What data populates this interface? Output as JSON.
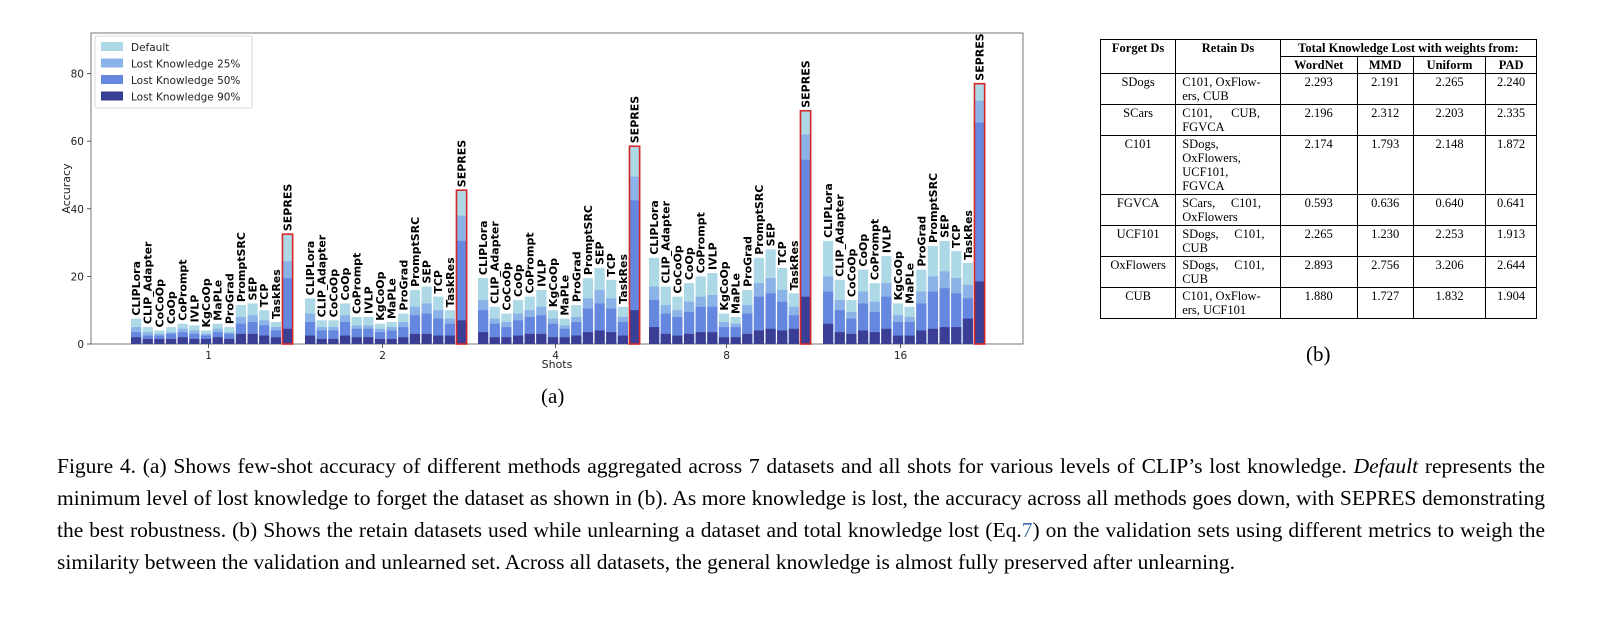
{
  "figure_a": {
    "sub_label": "(a)",
    "chart_data": {
      "type": "bar",
      "stacked_overlay": true,
      "xlabel": "Shots",
      "ylabel": "Accuracy",
      "ylim": [
        0,
        92
      ],
      "yticks": [
        0,
        20,
        40,
        60,
        80
      ],
      "legend_position": "top-left",
      "groups": [
        "1",
        "2",
        "4",
        "8",
        "16"
      ],
      "methods": [
        "CLIPLora",
        "CLIP_Adapter",
        "CoCoOp",
        "CoOp",
        "CoPrompt",
        "IVLP",
        "KgCoOp",
        "MaPLe",
        "ProGrad",
        "PromptSRC",
        "SEP",
        "TCP",
        "TaskRes",
        "SEPRES"
      ],
      "highlight_method": "SEPRES",
      "highlight_color": "#d62728",
      "series": [
        {
          "name": "Default",
          "color": "#add8e6",
          "values": [
            [
              7.5,
              5.0,
              4.0,
              5.0,
              6.0,
              5.5,
              4.0,
              6.0,
              5.0,
              11.5,
              12.0,
              10.0,
              6.5,
              32.5
            ],
            [
              13.5,
              7.0,
              7.0,
              12.0,
              8.0,
              8.0,
              6.0,
              6.5,
              9.0,
              16.0,
              17.0,
              14.0,
              10.0,
              45.5
            ],
            [
              19.5,
              11.0,
              9.0,
              13.0,
              14.0,
              16.0,
              10.0,
              7.5,
              11.5,
              19.5,
              22.5,
              19.0,
              11.0,
              58.5
            ],
            [
              25.5,
              17.0,
              14.0,
              18.0,
              20.0,
              21.0,
              9.0,
              8.0,
              16.0,
              25.5,
              28.0,
              22.5,
              15.0,
              69.0
            ],
            [
              30.5,
              19.0,
              13.0,
              22.0,
              18.0,
              26.0,
              12.0,
              11.0,
              22.0,
              29.0,
              30.5,
              27.5,
              24.0,
              77.0
            ]
          ]
        },
        {
          "name": "Lost Knowledge 25%",
          "color": "#8cb3e8",
          "values": [
            [
              5.0,
              3.5,
              3.0,
              3.5,
              4.5,
              4.0,
              3.0,
              4.5,
              3.5,
              8.0,
              8.5,
              7.0,
              5.0,
              24.5
            ],
            [
              9.0,
              5.0,
              5.0,
              8.5,
              5.5,
              5.5,
              4.5,
              5.0,
              6.5,
              11.0,
              12.0,
              10.0,
              7.5,
              38.0
            ],
            [
              13.0,
              7.5,
              6.5,
              9.0,
              10.0,
              11.0,
              7.5,
              5.5,
              8.0,
              13.5,
              16.0,
              13.5,
              8.0,
              49.5
            ],
            [
              17.0,
              11.5,
              10.0,
              12.5,
              14.0,
              14.5,
              6.5,
              6.0,
              11.5,
              18.0,
              19.5,
              16.0,
              11.0,
              62.0
            ],
            [
              20.0,
              13.0,
              9.5,
              15.5,
              12.5,
              18.0,
              8.5,
              8.0,
              15.5,
              20.0,
              21.5,
              19.5,
              17.5,
              72.0
            ]
          ]
        },
        {
          "name": "Lost Knowledge 50%",
          "color": "#6687e0",
          "values": [
            [
              3.5,
              2.5,
              2.5,
              3.0,
              3.5,
              3.0,
              2.5,
              3.5,
              3.0,
              6.0,
              6.5,
              5.5,
              4.0,
              19.5
            ],
            [
              6.5,
              4.0,
              4.0,
              6.5,
              4.5,
              4.5,
              3.5,
              4.0,
              5.0,
              8.5,
              9.0,
              7.5,
              6.0,
              30.5
            ],
            [
              10.0,
              6.0,
              5.0,
              7.0,
              8.0,
              8.5,
              6.0,
              4.5,
              6.5,
              10.5,
              12.0,
              10.5,
              6.5,
              42.5
            ],
            [
              13.0,
              9.0,
              8.0,
              9.5,
              11.0,
              11.0,
              5.0,
              5.0,
              9.0,
              14.0,
              15.0,
              12.5,
              8.5,
              54.5
            ],
            [
              15.5,
              10.0,
              7.5,
              12.0,
              9.5,
              14.0,
              6.5,
              6.5,
              12.0,
              15.5,
              16.5,
              15.0,
              13.5,
              65.5
            ]
          ]
        },
        {
          "name": "Lost Knowledge 90%",
          "color": "#3b3e95",
          "values": [
            [
              2.0,
              1.5,
              1.5,
              1.5,
              2.0,
              1.5,
              1.5,
              2.0,
              1.5,
              3.0,
              3.0,
              2.5,
              2.0,
              4.5
            ],
            [
              2.5,
              1.5,
              1.5,
              2.5,
              2.0,
              2.0,
              1.5,
              1.5,
              2.0,
              3.0,
              3.0,
              2.5,
              2.5,
              7.0
            ],
            [
              3.5,
              2.0,
              2.0,
              2.5,
              3.0,
              3.0,
              2.0,
              2.0,
              2.5,
              3.5,
              4.0,
              3.5,
              2.5,
              10.0
            ],
            [
              5.0,
              3.0,
              2.5,
              3.0,
              3.5,
              3.5,
              2.0,
              2.0,
              3.0,
              4.0,
              4.5,
              4.0,
              4.5,
              14.0
            ],
            [
              6.0,
              3.5,
              3.0,
              4.0,
              3.5,
              4.5,
              2.5,
              2.5,
              4.0,
              4.5,
              5.0,
              5.0,
              7.5,
              18.5
            ]
          ]
        }
      ]
    }
  },
  "figure_b": {
    "sub_label": "(b)",
    "headers": {
      "forget": "Forget Ds",
      "retain": "Retain Ds",
      "group": "Total Knowledge Lost with weights from:",
      "metrics": [
        "WordNet",
        "MMD",
        "Uniform",
        "PAD"
      ]
    },
    "rows": [
      {
        "forget": "SDogs",
        "retain": [
          "C101, OxFlow-",
          "ers, CUB"
        ],
        "values": [
          "2.293",
          "2.191",
          "2.265",
          "2.240"
        ]
      },
      {
        "forget": "SCars",
        "retain": [
          "C101,      CUB,",
          "FGVCA"
        ],
        "values": [
          "2.196",
          "2.312",
          "2.203",
          "2.335"
        ]
      },
      {
        "forget": "C101",
        "retain": [
          "SDogs,",
          "OxFlowers,",
          "UCF101,",
          "FGVCA"
        ],
        "values": [
          "2.174",
          "1.793",
          "2.148",
          "1.872"
        ]
      },
      {
        "forget": "FGVCA",
        "retain": [
          "SCars,     C101,",
          "OxFlowers"
        ],
        "values": [
          "0.593",
          "0.636",
          "0.640",
          "0.641"
        ]
      },
      {
        "forget": "UCF101",
        "retain": [
          "SDogs,     C101,",
          "CUB"
        ],
        "values": [
          "2.265",
          "1.230",
          "2.253",
          "1.913"
        ]
      },
      {
        "forget": "OxFlowers",
        "retain": [
          "SDogs,     C101,",
          "CUB"
        ],
        "values": [
          "2.893",
          "2.756",
          "3.206",
          "2.644"
        ]
      },
      {
        "forget": "CUB",
        "retain": [
          "C101, OxFlow-",
          "ers, UCF101"
        ],
        "values": [
          "1.880",
          "1.727",
          "1.832",
          "1.904"
        ]
      }
    ]
  },
  "caption": {
    "p1": "Figure 4.  (a) Shows few-shot accuracy of different methods aggregated across 7 datasets and all shots for various levels of CLIP’s lost knowledge. ",
    "italic": "Default",
    "p2": " represents the minimum level of lost knowledge to forget the dataset as shown in (b).  As more knowledge is lost, the accuracy across all methods goes down, with SEPRES demonstrating the best robustness.  (b) Shows the retain datasets used while unlearning a dataset and total knowledge lost (Eq.",
    "ref": "7",
    "p3": ") on the validation sets using different metrics to weigh the similarity between the validation and unlearned set. Across all datasets, the general knowledge is almost fully preserved after unlearning."
  }
}
